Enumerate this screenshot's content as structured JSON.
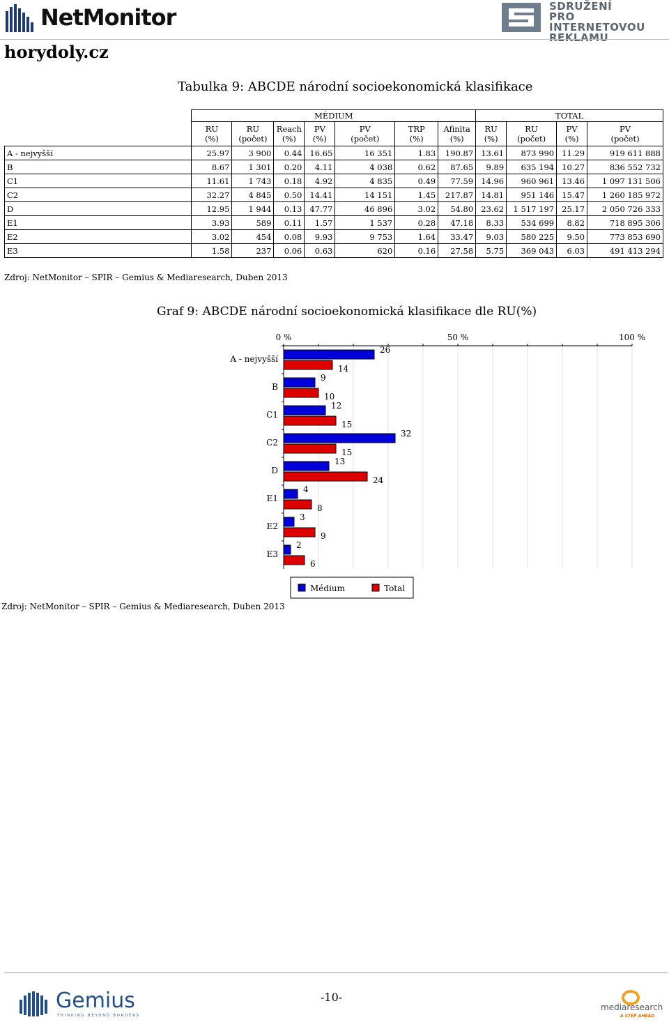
{
  "header": {
    "netmonitor_logo": "NetMonitor",
    "spir_logo_lines": [
      "SDRUŽENÍ",
      "PRO INTERNETOVOU",
      "REKLAMU"
    ],
    "site": "horydoly.cz"
  },
  "table": {
    "title": "Tabulka 9: ABCDE národní socioekonomická klasifikace",
    "group_medium": "MÉDIUM",
    "group_total": "TOTAL",
    "columns": [
      [
        "RU",
        "(%)"
      ],
      [
        "RU",
        "(počet)"
      ],
      [
        "Reach",
        "(%)"
      ],
      [
        "PV",
        "(%)"
      ],
      [
        "PV",
        "(počet)"
      ],
      [
        "TRP",
        "(%)"
      ],
      [
        "Afinita",
        "(%)"
      ],
      [
        "RU",
        "(%)"
      ],
      [
        "RU",
        "(počet)"
      ],
      [
        "PV",
        "(%)"
      ],
      [
        "PV",
        "(počet)"
      ]
    ],
    "rows": [
      {
        "label": "A - nejvyšší",
        "cells": [
          "25.97",
          "3 900",
          "0.44",
          "16.65",
          "16 351",
          "1.83",
          "190.87",
          "13.61",
          "873 990",
          "11.29",
          "919 611 888"
        ]
      },
      {
        "label": "B",
        "cells": [
          "8.67",
          "1 301",
          "0.20",
          "4.11",
          "4 038",
          "0.62",
          "87.65",
          "9.89",
          "635 194",
          "10.27",
          "836 552 732"
        ]
      },
      {
        "label": "C1",
        "cells": [
          "11.61",
          "1 743",
          "0.18",
          "4.92",
          "4 835",
          "0.49",
          "77.59",
          "14.96",
          "960 961",
          "13.46",
          "1 097 131 506"
        ]
      },
      {
        "label": "C2",
        "cells": [
          "32.27",
          "4 845",
          "0.50",
          "14.41",
          "14 151",
          "1.45",
          "217.87",
          "14.81",
          "951 146",
          "15.47",
          "1 260 185 972"
        ]
      },
      {
        "label": "D",
        "cells": [
          "12.95",
          "1 944",
          "0.13",
          "47.77",
          "46 896",
          "3.02",
          "54.80",
          "23.62",
          "1 517 197",
          "25.17",
          "2 050 726 333"
        ]
      },
      {
        "label": "E1",
        "cells": [
          "3.93",
          "589",
          "0.11",
          "1.57",
          "1 537",
          "0.28",
          "47.18",
          "8.33",
          "534 699",
          "8.82",
          "718 895 306"
        ]
      },
      {
        "label": "E2",
        "cells": [
          "3.02",
          "454",
          "0.08",
          "9.93",
          "9 753",
          "1.64",
          "33.47",
          "9.03",
          "580 225",
          "9.50",
          "773 853 690"
        ]
      },
      {
        "label": "E3",
        "cells": [
          "1.58",
          "237",
          "0.06",
          "0.63",
          "620",
          "0.16",
          "27.58",
          "5.75",
          "369 043",
          "6.03",
          "491 413 294"
        ]
      }
    ],
    "source": "Zdroj: NetMonitor – SPIR – Gemius & Mediaresearch, Duben 2013"
  },
  "chart_data": {
    "type": "bar",
    "orientation": "horizontal",
    "title": "Graf 9: ABCDE národní socioekonomická klasifikace dle RU(%)",
    "categories": [
      "A - nejvyšší",
      "B",
      "C1",
      "C2",
      "D",
      "E1",
      "E2",
      "E3"
    ],
    "series": [
      {
        "name": "Médium",
        "values": [
          26,
          9,
          12,
          32,
          13,
          4,
          3,
          2
        ],
        "color": "#0000dd"
      },
      {
        "name": "Total",
        "values": [
          14,
          10,
          15,
          15,
          24,
          8,
          9,
          6
        ],
        "color": "#dd0000"
      }
    ],
    "xlim": [
      0,
      100
    ],
    "x_ticks": [
      "0 %",
      "50 %",
      "100 %"
    ],
    "x_tick_values": [
      0,
      50,
      100
    ],
    "legend_position": "bottom",
    "grid": true,
    "source": "Zdroj: NetMonitor – SPIR – Gemius & Mediaresearch, Duben 2013"
  },
  "footer": {
    "page_number": "-10-",
    "gemius_logo": "Gemius",
    "gemius_tagline": "THINKING BEYOND BORDERS",
    "mediaresearch_logo": "mediaresearch",
    "mediaresearch_tagline": "A STEP AHEAD"
  }
}
